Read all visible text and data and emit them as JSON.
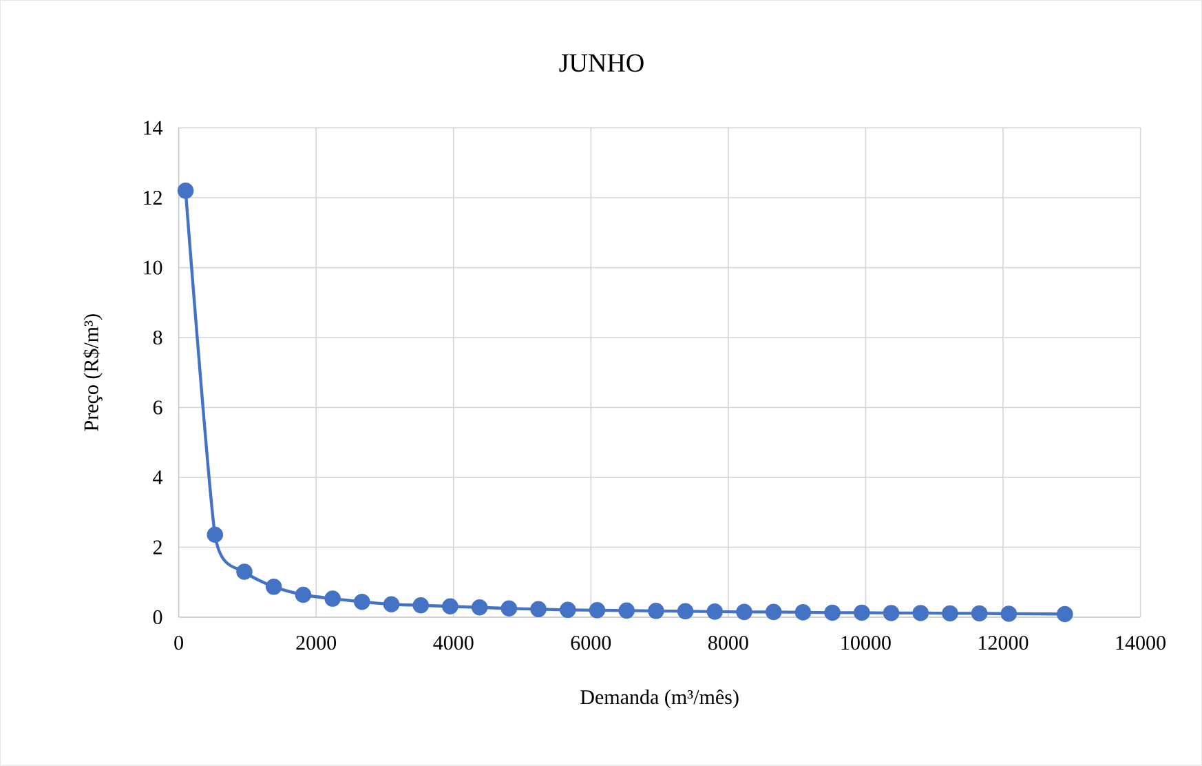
{
  "chart_data": {
    "type": "line",
    "title": "JUNHO",
    "xlabel": "Demanda (m³/mês)",
    "ylabel": "Preço (R$/m³)",
    "x": [
      100,
      528,
      956,
      1384,
      1812,
      2240,
      2668,
      3096,
      3524,
      3952,
      4380,
      4808,
      5236,
      5664,
      6092,
      6520,
      6948,
      7376,
      7804,
      8232,
      8660,
      9088,
      9516,
      9944,
      10372,
      10800,
      11228,
      11656,
      12084,
      12900
    ],
    "series": [
      {
        "color": "#4472c4",
        "values": [
          12.2,
          2.36,
          1.3,
          0.87,
          0.64,
          0.53,
          0.44,
          0.37,
          0.34,
          0.31,
          0.28,
          0.25,
          0.23,
          0.21,
          0.2,
          0.19,
          0.18,
          0.17,
          0.16,
          0.15,
          0.15,
          0.14,
          0.13,
          0.13,
          0.12,
          0.12,
          0.11,
          0.11,
          0.1,
          0.09
        ]
      }
    ],
    "xlim": [
      0,
      14000
    ],
    "xticks": [
      0,
      2000,
      4000,
      6000,
      8000,
      10000,
      12000,
      14000
    ],
    "ylim": [
      0,
      14
    ],
    "yticks": [
      0,
      2,
      4,
      6,
      8,
      10,
      12,
      14
    ],
    "grid": true,
    "marker": "circle",
    "line_style": "solid"
  }
}
